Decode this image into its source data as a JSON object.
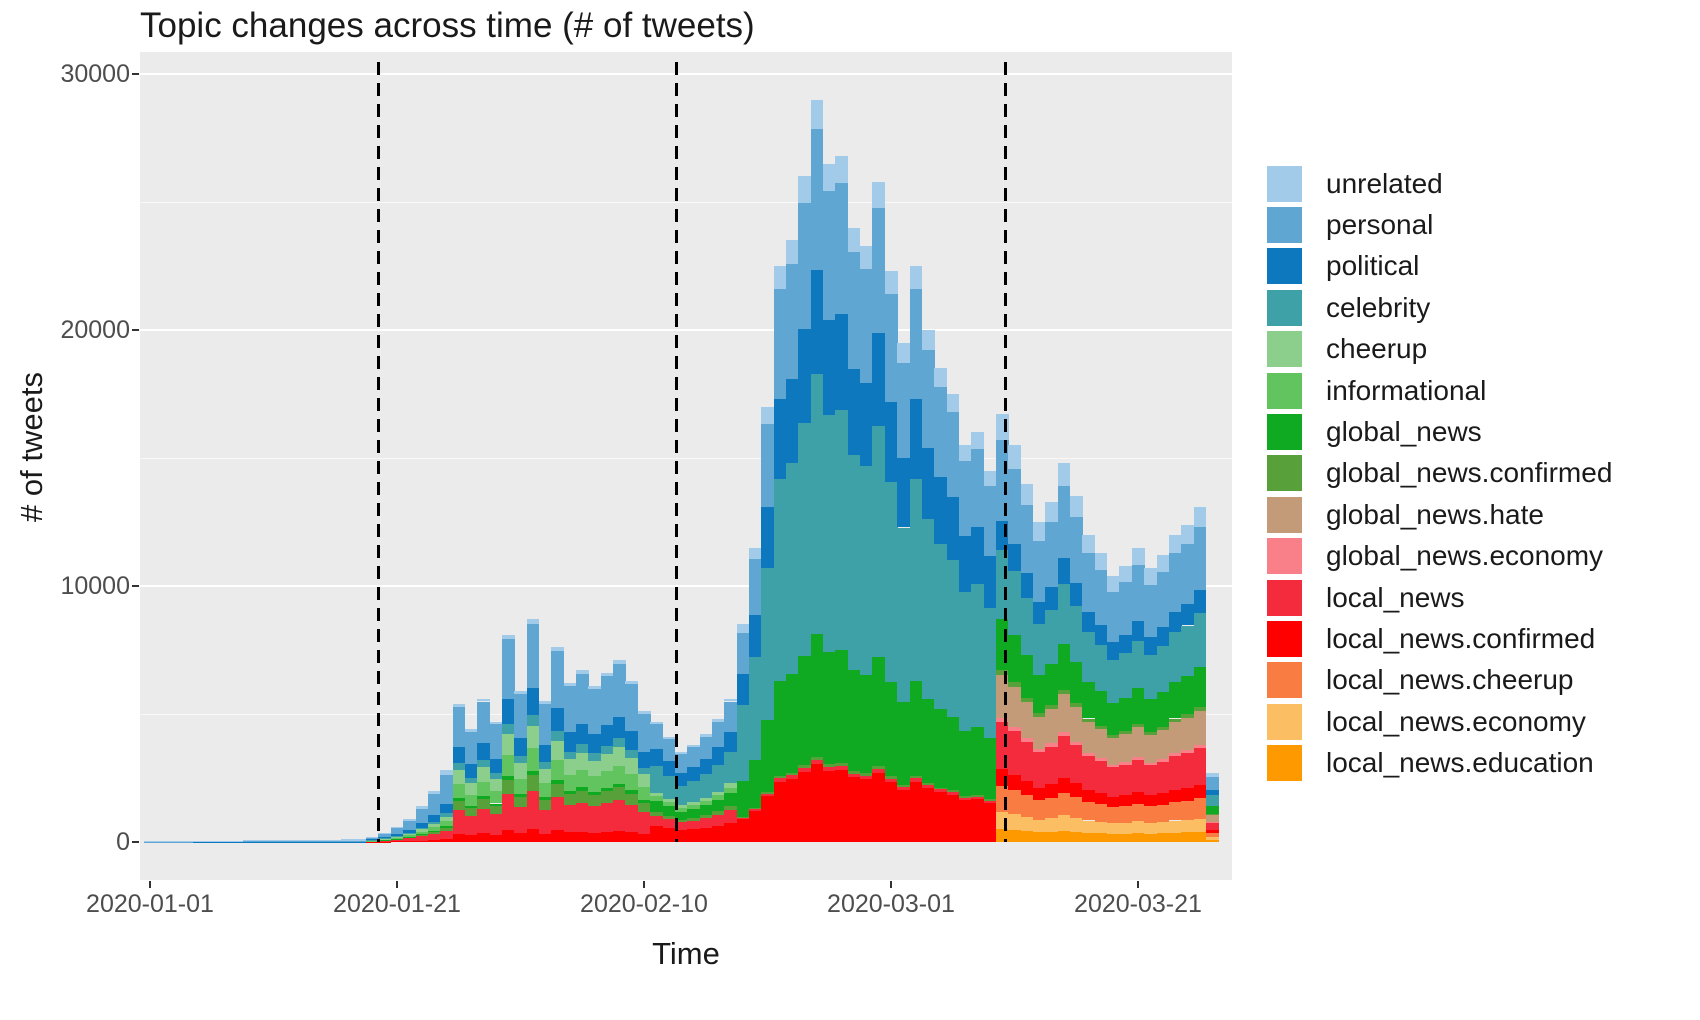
{
  "title": "Topic changes across time (# of tweets)",
  "x_axis": {
    "label": "Time",
    "ticks": [
      {
        "label": "2020-01-01",
        "day": 0
      },
      {
        "label": "2020-01-21",
        "day": 20
      },
      {
        "label": "2020-02-10",
        "day": 40
      },
      {
        "label": "2020-03-01",
        "day": 60
      },
      {
        "label": "2020-03-21",
        "day": 80
      }
    ]
  },
  "y_axis": {
    "label": "# of tweets",
    "ticks": [
      {
        "label": "0",
        "value": 0
      },
      {
        "label": "10000",
        "value": 10000
      },
      {
        "label": "20000",
        "value": 20000
      },
      {
        "label": "30000",
        "value": 30000
      }
    ],
    "minor_gridlines": [
      5000,
      15000,
      25000
    ],
    "major_gridlines": [
      10000,
      20000,
      30000
    ]
  },
  "annotations": {
    "dashed_line_days": [
      18.5,
      42.6,
      69.3
    ],
    "dashed_line_color": "#000000"
  },
  "style": {
    "panel_bg": "#EBEBEB",
    "grid_color": "#FFFFFF",
    "tick_text_color": "#4D4D4D"
  },
  "legend": {
    "items": [
      {
        "label": "unrelated",
        "color": "#A1CBE8"
      },
      {
        "label": "personal",
        "color": "#5FA6D2"
      },
      {
        "label": "political",
        "color": "#0E78BE"
      },
      {
        "label": "celebrity",
        "color": "#3FA1A8"
      },
      {
        "label": "cheerup",
        "color": "#8CCE8C"
      },
      {
        "label": "informational",
        "color": "#62C45E"
      },
      {
        "label": "global_news",
        "color": "#0FA922"
      },
      {
        "label": "global_news.confirmed",
        "color": "#57A03A"
      },
      {
        "label": "global_news.hate",
        "color": "#C49B79"
      },
      {
        "label": "global_news.economy",
        "color": "#F97F88"
      },
      {
        "label": "local_news",
        "color": "#F42B3C"
      },
      {
        "label": "local_news.confirmed",
        "color": "#FE0000"
      },
      {
        "label": "local_news.cheerup",
        "color": "#F97C42"
      },
      {
        "label": "local_news.economy",
        "color": "#FBBE62"
      },
      {
        "label": "local_news.education",
        "color": "#FE9900"
      }
    ]
  },
  "chart_data": {
    "type": "bar",
    "stacked": true,
    "title": "Topic changes across time (# of tweets)",
    "xlabel": "Time",
    "ylabel": "# of tweets",
    "ylim": [
      0,
      30000
    ],
    "x_range": [
      "2020-01-01",
      "2020-03-27"
    ],
    "stack_note": "series listed bottom-to-top; start_day_index = number of leading zero days before values begin; days run 0..86 from 2020-01-01",
    "x": [
      "2020-01-01",
      "2020-01-02",
      "2020-01-03",
      "2020-01-04",
      "2020-01-05",
      "2020-01-06",
      "2020-01-07",
      "2020-01-08",
      "2020-01-09",
      "2020-01-10",
      "2020-01-11",
      "2020-01-12",
      "2020-01-13",
      "2020-01-14",
      "2020-01-15",
      "2020-01-16",
      "2020-01-17",
      "2020-01-18",
      "2020-01-19",
      "2020-01-20",
      "2020-01-21",
      "2020-01-22",
      "2020-01-23",
      "2020-01-24",
      "2020-01-25",
      "2020-01-26",
      "2020-01-27",
      "2020-01-28",
      "2020-01-29",
      "2020-01-30",
      "2020-01-31",
      "2020-02-01",
      "2020-02-02",
      "2020-02-03",
      "2020-02-04",
      "2020-02-05",
      "2020-02-06",
      "2020-02-07",
      "2020-02-08",
      "2020-02-09",
      "2020-02-10",
      "2020-02-11",
      "2020-02-12",
      "2020-02-13",
      "2020-02-14",
      "2020-02-15",
      "2020-02-16",
      "2020-02-17",
      "2020-02-18",
      "2020-02-19",
      "2020-02-20",
      "2020-02-21",
      "2020-02-22",
      "2020-02-23",
      "2020-02-24",
      "2020-02-25",
      "2020-02-26",
      "2020-02-27",
      "2020-02-28",
      "2020-02-29",
      "2020-03-01",
      "2020-03-02",
      "2020-03-03",
      "2020-03-04",
      "2020-03-05",
      "2020-03-06",
      "2020-03-07",
      "2020-03-08",
      "2020-03-09",
      "2020-03-10",
      "2020-03-11",
      "2020-03-12",
      "2020-03-13",
      "2020-03-14",
      "2020-03-15",
      "2020-03-16",
      "2020-03-17",
      "2020-03-18",
      "2020-03-19",
      "2020-03-20",
      "2020-03-21",
      "2020-03-22",
      "2020-03-23",
      "2020-03-24",
      "2020-03-25",
      "2020-03-26",
      "2020-03-27"
    ],
    "series": [
      {
        "name": "local_news.education",
        "color": "#FE9900",
        "start_day_index": 69,
        "values": [
          501,
          465,
          420,
          375,
          399,
          444,
          405,
          360,
          339,
          312,
          324,
          345,
          321,
          336,
          360,
          372,
          393,
          81
        ]
      },
      {
        "name": "local_news.economy",
        "color": "#FBBE62",
        "start_day_index": 69,
        "values": [
          668,
          620,
          560,
          500,
          532,
          592,
          540,
          480,
          452,
          416,
          432,
          460,
          428,
          448,
          480,
          496,
          524,
          108
        ]
      },
      {
        "name": "local_news.cheerup",
        "color": "#F97C42",
        "start_day_index": 69,
        "values": [
          1002,
          930,
          840,
          750,
          798,
          888,
          810,
          720,
          678,
          624,
          648,
          690,
          642,
          672,
          720,
          744,
          786,
          162
        ]
      },
      {
        "name": "local_news.confirmed",
        "color": "#FE0000",
        "start_day_index": 18,
        "values": [
          8,
          14,
          24,
          36,
          56,
          80,
          112,
          324,
          264,
          336,
          282,
          486,
          354,
          522,
          330,
          456,
          372,
          402,
          366,
          396,
          426,
          378,
          306,
          611,
          533,
          455,
          494,
          546,
          624,
          728,
          892,
          1208,
          1785,
          2362,
          2468,
          2730,
          3045,
          2782,
          2814,
          2520,
          2446,
          2709,
          2341,
          2048,
          2362,
          2100,
          1942,
          1838,
          1628,
          1680,
          1522,
          668,
          620,
          560,
          500,
          532,
          592,
          540,
          480,
          452,
          416,
          432,
          460,
          428,
          448,
          480,
          496,
          524,
          108
        ]
      },
      {
        "name": "local_news",
        "color": "#F42B3C",
        "start_day_index": 18,
        "values": [
          24,
          42,
          72,
          108,
          168,
          240,
          336,
          918,
          748,
          952,
          799,
          1377,
          1003,
          1479,
          935,
          1292,
          1054,
          1139,
          1037,
          1122,
          1207,
          1071,
          867,
          423,
          369,
          315,
          342,
          378,
          432,
          504,
          51,
          69,
          102,
          135,
          141,
          156,
          174,
          159,
          161,
          144,
          140,
          155,
          134,
          117,
          135,
          120,
          111,
          105,
          93,
          96,
          87,
          1837,
          1705,
          1540,
          1375,
          1463,
          1628,
          1485,
          1320,
          1243,
          1144,
          1188,
          1265,
          1177,
          1232,
          1320,
          1364,
          1441,
          297
        ]
      },
      {
        "name": "global_news.economy",
        "color": "#F97F88",
        "start_day_index": 69,
        "values": [
          167,
          155,
          140,
          125,
          133,
          148,
          135,
          120,
          113,
          104,
          108,
          115,
          107,
          112,
          120,
          124,
          131,
          27
        ]
      },
      {
        "name": "global_news.hate",
        "color": "#C49B79",
        "start_day_index": 69,
        "values": [
          1670,
          1550,
          1400,
          1250,
          1330,
          1480,
          1350,
          1200,
          1130,
          1040,
          1080,
          1150,
          1070,
          1120,
          1200,
          1240,
          1310,
          270
        ]
      },
      {
        "name": "global_news.confirmed",
        "color": "#57A03A",
        "start_day_index": 18,
        "values": [
          8,
          14,
          24,
          36,
          56,
          80,
          112,
          378,
          308,
          392,
          329,
          567,
          413,
          609,
          385,
          532,
          434,
          469,
          427,
          462,
          497,
          441,
          357,
          141,
          123,
          105,
          114,
          126,
          144,
          168,
          34,
          46,
          68,
          90,
          94,
          104,
          116,
          106,
          107,
          96,
          93,
          103,
          89,
          78,
          90,
          80,
          74,
          70,
          62,
          64,
          58,
          200,
          186,
          168,
          150,
          160,
          178,
          162,
          144,
          136,
          125,
          130,
          138,
          128,
          134,
          144,
          149,
          157,
          32
        ]
      },
      {
        "name": "global_news",
        "color": "#0FA922",
        "start_day_index": 18,
        "values": [
          4,
          7,
          12,
          18,
          28,
          40,
          56,
          108,
          88,
          112,
          94,
          162,
          118,
          174,
          110,
          152,
          124,
          134,
          122,
          132,
          142,
          126,
          102,
          423,
          369,
          315,
          342,
          378,
          432,
          504,
          1402,
          1898,
          2805,
          3712,
          3878,
          4290,
          4785,
          4372,
          4422,
          3960,
          3844,
          4257,
          3679,
          3217,
          3712,
          3300,
          3052,
          2887,
          2557,
          2640,
          2392,
          2004,
          1860,
          1680,
          1500,
          1596,
          1776,
          1620,
          1440,
          1356,
          1248,
          1296,
          1380,
          1284,
          1344,
          1440,
          1488,
          1572,
          324
        ]
      },
      {
        "name": "informational",
        "color": "#62C45E",
        "start_day_index": 18,
        "values": [
          14,
          24,
          42,
          63,
          98,
          140,
          196,
          540,
          440,
          560,
          470,
          810,
          590,
          870,
          550,
          760,
          620,
          670,
          610,
          660,
          710,
          630,
          510,
          188,
          164,
          140,
          152,
          168,
          192,
          224
        ]
      },
      {
        "name": "cheerup",
        "color": "#8CCE8C",
        "start_day_index": 18,
        "values": [
          12,
          21,
          36,
          54,
          84,
          120,
          168,
          540,
          440,
          560,
          470,
          810,
          590,
          870,
          550,
          760,
          620,
          670,
          610,
          660,
          710,
          630,
          510,
          141,
          123,
          105,
          114,
          126,
          144,
          168
        ]
      },
      {
        "name": "celebrity",
        "color": "#3FA1A8",
        "start_day_index": 18,
        "values": [
          10,
          17,
          30,
          45,
          70,
          100,
          140,
          270,
          220,
          280,
          235,
          405,
          295,
          435,
          275,
          380,
          310,
          335,
          305,
          330,
          355,
          315,
          255,
          1034,
          902,
          770,
          836,
          924,
          1056,
          1232,
          2975,
          4025,
          5950,
          7875,
          8225,
          9100,
          10150,
          9275,
          9380,
          8400,
          8155,
          9030,
          7805,
          6825,
          7875,
          7000,
          6475,
          6125,
          5425,
          5600,
          5075,
          2672,
          2480,
          2240,
          2000,
          2128,
          2368,
          2160,
          1920,
          1808,
          1664,
          1728,
          1840,
          1712,
          1792,
          1920,
          1984,
          2096,
          432
        ]
      },
      {
        "name": "political",
        "color": "#0E78BE",
        "start_day_index": 0,
        "values": [
          4,
          4,
          4,
          4,
          5,
          5,
          5,
          5,
          6,
          6,
          6,
          6,
          7,
          7,
          8,
          9,
          10,
          12,
          26,
          46,
          78,
          117,
          182,
          260,
          364,
          648,
          528,
          672,
          564,
          972,
          708,
          1044,
          660,
          912,
          744,
          804,
          732,
          792,
          852,
          756,
          612,
          658,
          574,
          490,
          532,
          588,
          672,
          784,
          1190,
          1610,
          2380,
          3150,
          3290,
          3640,
          4060,
          3710,
          3752,
          3360,
          3262,
          3612,
          3122,
          2730,
          3150,
          2800,
          2590,
          2450,
          2170,
          2240,
          2030,
          1136,
          1054,
          952,
          850,
          904,
          1006,
          918,
          816,
          768,
          707,
          734,
          782,
          728,
          762,
          816,
          843,
          891,
          184
        ]
      },
      {
        "name": "personal",
        "color": "#5FA6D2",
        "start_day_index": 0,
        "values": [
          12,
          12,
          14,
          14,
          15,
          15,
          17,
          17,
          18,
          18,
          20,
          20,
          21,
          21,
          24,
          27,
          30,
          36,
          80,
          140,
          240,
          360,
          560,
          800,
          1120,
          1566,
          1276,
          1624,
          1363,
          2349,
          1711,
          2523,
          1595,
          2204,
          1798,
          1943,
          1769,
          1914,
          2059,
          1827,
          1479,
          987,
          861,
          735,
          798,
          882,
          1008,
          1176,
          1615,
          2185,
          3230,
          4275,
          4465,
          4940,
          5510,
          5035,
          5092,
          4560,
          4427,
          4902,
          4237,
          3705,
          4275,
          3800,
          3515,
          3325,
          2945,
          3040,
          2755,
          3173,
          2945,
          2660,
          2375,
          2527,
          2812,
          2565,
          2280,
          2147,
          1976,
          2052,
          2185,
          2033,
          2128,
          2280,
          2356,
          2489,
          513
        ]
      },
      {
        "name": "unrelated",
        "color": "#A1CBE8",
        "start_day_index": 0,
        "values": [
          24,
          24,
          27,
          27,
          30,
          30,
          33,
          33,
          36,
          36,
          39,
          39,
          42,
          42,
          48,
          54,
          60,
          72,
          14,
          25,
          42,
          63,
          98,
          140,
          196,
          108,
          88,
          112,
          94,
          162,
          118,
          174,
          110,
          152,
          124,
          134,
          122,
          132,
          142,
          126,
          102,
          94,
          82,
          70,
          76,
          84,
          96,
          112,
          340,
          460,
          680,
          900,
          940,
          1040,
          1160,
          1060,
          1072,
          960,
          932,
          1032,
          892,
          780,
          900,
          800,
          740,
          700,
          620,
          640,
          580,
          1002,
          930,
          840,
          750,
          798,
          888,
          810,
          720,
          678,
          624,
          648,
          690,
          642,
          672,
          720,
          744,
          786,
          162
        ]
      }
    ]
  }
}
